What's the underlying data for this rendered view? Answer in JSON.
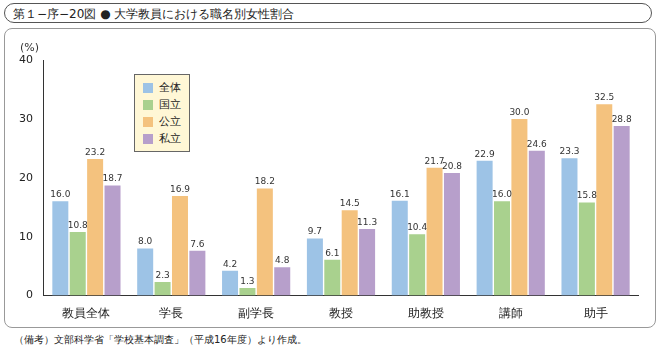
{
  "chart_data": {
    "type": "bar",
    "title": "第１−序−20図 ● 大学教員における職名別女性割合",
    "y_label": "(%)",
    "footnote": "（備考）文部科学省「学校基本調査」（平成16年度）より作成。",
    "categories": [
      "教員全体",
      "学長",
      "副学長",
      "教授",
      "助教授",
      "講師",
      "助手"
    ],
    "series": [
      {
        "name": "全体",
        "color": "#9dc3e6",
        "values": [
          16.0,
          8.0,
          4.2,
          9.7,
          16.1,
          22.9,
          23.3
        ],
        "value_labels": [
          "16.0",
          "8.0",
          "4.2",
          "9.7",
          "16.1",
          "22.9",
          "23.3"
        ]
      },
      {
        "name": "国立",
        "color": "#a9d18e",
        "values": [
          10.8,
          2.3,
          1.3,
          6.1,
          10.4,
          16.0,
          15.8
        ],
        "value_labels": [
          "10.8",
          "2.3",
          "1.3",
          "6.1",
          "10.4",
          "16.0",
          "15.8"
        ]
      },
      {
        "name": "公立",
        "color": "#f4c27e",
        "values": [
          23.2,
          16.9,
          18.2,
          14.5,
          21.7,
          30.0,
          32.5
        ],
        "value_labels": [
          "23.2",
          "16.9",
          "18.2",
          "14.5",
          "21.7",
          "30.0",
          "32.5"
        ]
      },
      {
        "name": "私立",
        "color": "#b79fcb",
        "values": [
          18.7,
          7.6,
          4.8,
          11.3,
          20.8,
          24.6,
          28.8
        ],
        "value_labels": [
          "18.7",
          "7.6",
          "4.8",
          "11.3",
          "20.8",
          "24.6",
          "28.8"
        ]
      }
    ],
    "ylim": [
      0,
      40
    ],
    "yticks": [
      0,
      10,
      20,
      30,
      40
    ],
    "grid": false,
    "legend": "top-left",
    "data_labels": true
  }
}
